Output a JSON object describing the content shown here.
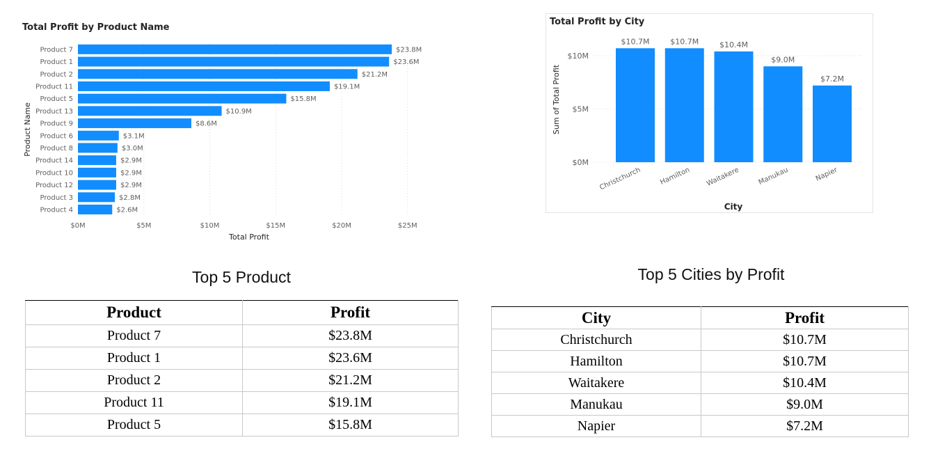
{
  "chart_data": [
    {
      "type": "bar",
      "orientation": "horizontal",
      "title": "Total Profit by Product Name",
      "xlabel": "Total Profit",
      "ylabel": "Product Name",
      "categories": [
        "Product 7",
        "Product 1",
        "Product 2",
        "Product 11",
        "Product 5",
        "Product 13",
        "Product 9",
        "Product 6",
        "Product 8",
        "Product 14",
        "Product 10",
        "Product 12",
        "Product 3",
        "Product 4"
      ],
      "values": [
        23.8,
        23.6,
        21.2,
        19.1,
        15.8,
        10.9,
        8.6,
        3.1,
        3.0,
        2.9,
        2.9,
        2.9,
        2.8,
        2.6
      ],
      "data_labels": [
        "$23.8M",
        "$23.6M",
        "$21.2M",
        "$19.1M",
        "$15.8M",
        "$10.9M",
        "$8.6M",
        "$3.1M",
        "$3.0M",
        "$2.9M",
        "$2.9M",
        "$2.9M",
        "$2.8M",
        "$2.6M"
      ],
      "xlim": [
        0,
        25
      ],
      "x_ticks": [
        0,
        5,
        10,
        15,
        20,
        25
      ],
      "x_tick_labels": [
        "$0M",
        "$5M",
        "$10M",
        "$15M",
        "$20M",
        "$25M"
      ],
      "color": "#118DFF",
      "grid": true
    },
    {
      "type": "bar",
      "title": "Total Profit by City",
      "xlabel": "City",
      "ylabel": "Sum of Total Profit",
      "categories": [
        "Christchurch",
        "Hamilton",
        "Waitakere",
        "Manukau",
        "Napier"
      ],
      "values": [
        10.7,
        10.7,
        10.4,
        9.0,
        7.2
      ],
      "data_labels": [
        "$10.7M",
        "$10.7M",
        "$10.4M",
        "$9.0M",
        "$7.2M"
      ],
      "ylim": [
        0,
        11.7
      ],
      "y_ticks": [
        0,
        5,
        10
      ],
      "y_tick_labels": [
        "$0M",
        "$5M",
        "$10M"
      ],
      "color": "#118DFF",
      "grid": true
    }
  ],
  "products_table": {
    "heading": "Top 5 Product",
    "columns": [
      "Product",
      "Profit"
    ],
    "rows": [
      [
        "Product 7",
        "$23.8M"
      ],
      [
        "Product 1",
        "$23.6M"
      ],
      [
        "Product 2",
        "$21.2M"
      ],
      [
        "Product 11",
        "$19.1M"
      ],
      [
        "Product 5",
        "$15.8M"
      ]
    ]
  },
  "cities_table": {
    "heading": "Top 5 Cities by Profit",
    "columns": [
      "City",
      "Profit"
    ],
    "rows": [
      [
        "Christchurch",
        "$10.7M"
      ],
      [
        "Hamilton",
        "$10.7M"
      ],
      [
        "Waitakere",
        "$10.4M"
      ],
      [
        "Manukau",
        "$9.0M"
      ],
      [
        "Napier",
        "$7.2M"
      ]
    ]
  }
}
